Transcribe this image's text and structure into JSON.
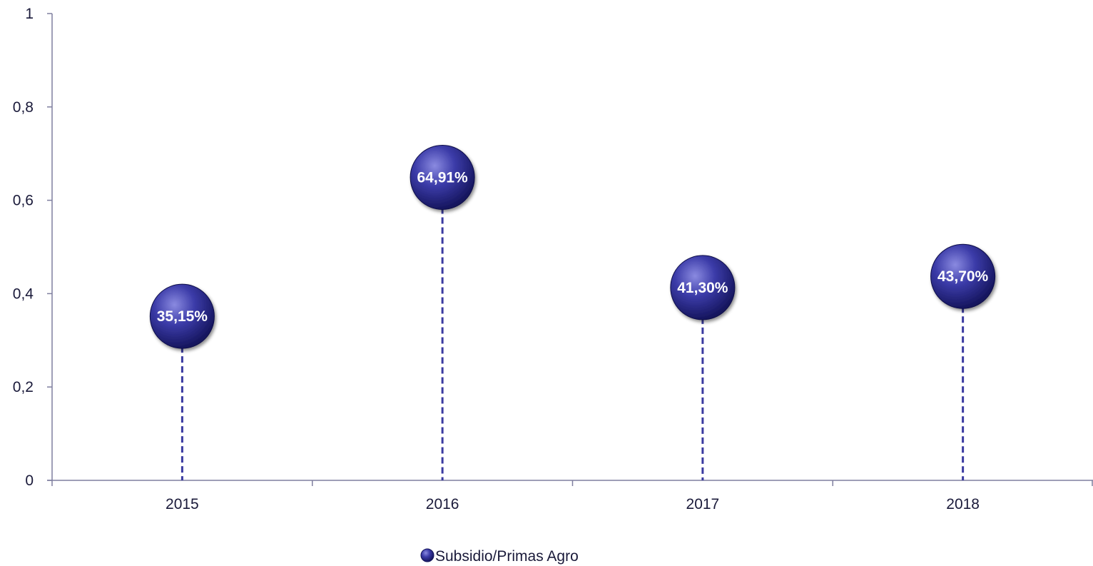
{
  "chart_data": {
    "type": "scatter",
    "categories": [
      "2015",
      "2016",
      "2017",
      "2018"
    ],
    "series": [
      {
        "name": "Subsidio/Primas Agro",
        "values": [
          0.3515,
          0.6491,
          0.413,
          0.437
        ],
        "labels": [
          "35,15%",
          "64,91%",
          "41,30%",
          "43,70%"
        ]
      }
    ],
    "ylim": [
      0,
      1
    ],
    "yticks": [
      0,
      0.2,
      0.4,
      0.6,
      0.8,
      1
    ],
    "ytick_labels": [
      "0",
      "0,2",
      "0,4",
      "0,6",
      "0,8",
      "1"
    ],
    "grid": false,
    "drop_lines": "dashed",
    "legend_position": "bottom",
    "colors": {
      "marker": "#2e2e8f",
      "marker_highlight": "#7b7bd6",
      "dropline": "#3a3aa0",
      "axis": "#7f7f9f"
    }
  }
}
